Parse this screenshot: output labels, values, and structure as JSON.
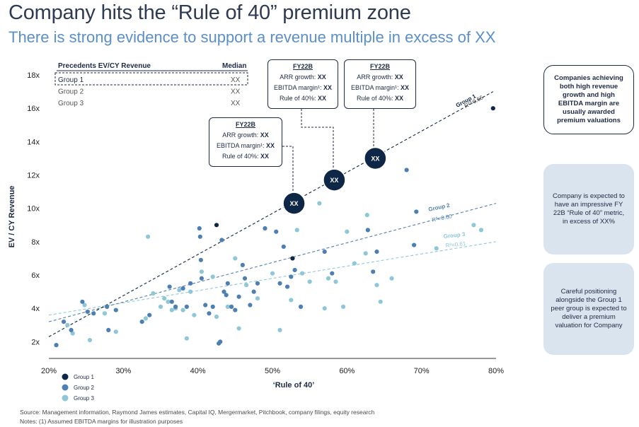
{
  "header": {
    "title": "Company hits the “Rule of 40” premium zone",
    "subtitle": "There is strong evidence to support a revenue multiple in excess of XX"
  },
  "table": {
    "col1": "Precedents EV/CY Revenue",
    "col2": "Median",
    "rows": [
      {
        "label": "Group 1",
        "value": "XX"
      },
      {
        "label": "Group 2",
        "value": "XX"
      },
      {
        "label": "Group 3",
        "value": "XX"
      }
    ]
  },
  "callouts": [
    {
      "title": "FY22B",
      "l1": "ARR growth:",
      "v1": "XX",
      "l2": "EBITDA margin¹:",
      "v2": "XX",
      "l3": "Rule of 40%:",
      "v3": "XX",
      "marker": "XX"
    },
    {
      "title": "FY22B",
      "l1": "ARR growth:",
      "v1": "XX",
      "l2": "EBITDA margin¹:",
      "v2": "XX",
      "l3": "Rule of 40%:",
      "v3": "XX",
      "marker": "XX"
    },
    {
      "title": "FY22B",
      "l1": "ARR growth:",
      "v1": "XX",
      "l2": "EBITDA margin¹:",
      "v2": "XX",
      "l3": "Rule of 40%:",
      "v3": "XX",
      "marker": "XX"
    }
  ],
  "side_boxes": [
    "Companies achieving both high revenue growth and high EBITDA margin are usually awarded premium valuations",
    "Company is expected to have an impressive FY 22B “Rule of 40” metric, in excess of XX%",
    "Careful positioning alongside the Group 1 peer group is expected to deliver a premium valuation for Company"
  ],
  "footer": {
    "source": "Source: Management information, Raymond James estimates, Capital IQ, Mergermarket, Pitchbook, company filings, equity research",
    "notes": "Notes: (1) Assumed EBITDA margins for illustration purposes"
  },
  "colors": {
    "group1": "#0f2747",
    "group2": "#4e7fb2",
    "group3": "#8ec7d6",
    "highlight": "#0f2747"
  },
  "chart_data": {
    "type": "scatter",
    "xlabel": "‘Rule of 40’",
    "ylabel": "EV / CY Revenue",
    "xlim": [
      20,
      80
    ],
    "ylim": [
      1,
      18
    ],
    "x_ticks": [
      20,
      30,
      40,
      50,
      60,
      70,
      80
    ],
    "x_tick_labels": [
      "20%",
      "30%",
      "40%",
      "50%",
      "60%",
      "70%",
      "80%"
    ],
    "y_ticks": [
      2,
      4,
      6,
      8,
      10,
      12,
      14,
      16,
      18
    ],
    "y_tick_labels": [
      "2x",
      "4x",
      "6x",
      "8x",
      "10x",
      "12x",
      "14x",
      "16x",
      "18x"
    ],
    "legend_position": "bottom-left",
    "series": [
      {
        "name": "Group 1",
        "color": "#0f2747",
        "points": [
          [
            42.5,
            9.0
          ],
          [
            52.7,
            7.0
          ],
          [
            79.6,
            16.0
          ]
        ],
        "trend": {
          "label": "Group 1",
          "r2": "R²=0.66",
          "x": [
            20,
            79.6
          ],
          "y": [
            2.3,
            17.0
          ]
        }
      },
      {
        "name": "Group 2",
        "color": "#4e7fb2",
        "points": [
          [
            21.0,
            1.8
          ],
          [
            22.0,
            3.2
          ],
          [
            23.0,
            2.7
          ],
          [
            24.5,
            4.4
          ],
          [
            25.2,
            3.8
          ],
          [
            26.0,
            3.7
          ],
          [
            27.8,
            4.1
          ],
          [
            28.0,
            2.7
          ],
          [
            29.0,
            3.9
          ],
          [
            32.5,
            3.2
          ],
          [
            33.5,
            3.6
          ],
          [
            36.2,
            5.3
          ],
          [
            36.5,
            4.4
          ],
          [
            37.0,
            4.1
          ],
          [
            38.0,
            5.2
          ],
          [
            38.5,
            4.1
          ],
          [
            39.0,
            5.5
          ],
          [
            40.2,
            8.8
          ],
          [
            40.3,
            8.3
          ],
          [
            40.4,
            6.9
          ],
          [
            40.5,
            5.8
          ],
          [
            41.0,
            4.2
          ],
          [
            41.5,
            3.7
          ],
          [
            42.0,
            4.1
          ],
          [
            42.8,
            1.9
          ],
          [
            43.0,
            2.0
          ],
          [
            43.2,
            8.1
          ],
          [
            43.5,
            5.0
          ],
          [
            43.8,
            4.8
          ],
          [
            44.0,
            5.5
          ],
          [
            44.5,
            4.1
          ],
          [
            45.0,
            3.9
          ],
          [
            45.5,
            4.7
          ],
          [
            46.0,
            6.6
          ],
          [
            46.3,
            5.8
          ],
          [
            47.0,
            4.2
          ],
          [
            47.5,
            5.0
          ],
          [
            48.0,
            5.5
          ],
          [
            49.0,
            8.8
          ],
          [
            50.5,
            8.6
          ],
          [
            51.0,
            5.5
          ],
          [
            51.5,
            7.7
          ],
          [
            52.0,
            5.3
          ],
          [
            52.5,
            5.9
          ],
          [
            53.0,
            6.3
          ],
          [
            53.8,
            4.1
          ],
          [
            57.0,
            7.4
          ],
          [
            58.0,
            6.1
          ],
          [
            62.8,
            8.7
          ],
          [
            63.5,
            6.2
          ],
          [
            64.0,
            7.4
          ],
          [
            68.0,
            12.3
          ],
          [
            69.0,
            7.8
          ],
          [
            69.3,
            9.8
          ]
        ],
        "trend": {
          "label": "Group 2",
          "r2": "R²=0.60",
          "x": [
            20,
            80
          ],
          "y": [
            3.2,
            10.3
          ]
        }
      },
      {
        "name": "Group 3",
        "color": "#8ec7d6",
        "points": [
          [
            22.5,
            3.0
          ],
          [
            23.2,
            2.5
          ],
          [
            24.8,
            4.2
          ],
          [
            25.5,
            2.1
          ],
          [
            27.5,
            3.7
          ],
          [
            29.0,
            2.6
          ],
          [
            33.0,
            3.4
          ],
          [
            33.3,
            8.3
          ],
          [
            34.0,
            4.9
          ],
          [
            35.0,
            4.1
          ],
          [
            35.5,
            4.6
          ],
          [
            36.0,
            4.4
          ],
          [
            36.5,
            3.9
          ],
          [
            37.0,
            4.0
          ],
          [
            37.5,
            5.1
          ],
          [
            38.0,
            3.9
          ],
          [
            38.5,
            2.2
          ],
          [
            39.0,
            5.0
          ],
          [
            39.5,
            3.6
          ],
          [
            40.5,
            6.2
          ],
          [
            42.0,
            5.9
          ],
          [
            42.5,
            3.5
          ],
          [
            44.0,
            4.1
          ],
          [
            45.0,
            7.0
          ],
          [
            45.5,
            2.8
          ],
          [
            46.5,
            5.4
          ],
          [
            48.0,
            4.6
          ],
          [
            50.0,
            6.1
          ],
          [
            51.0,
            2.7
          ],
          [
            52.5,
            4.5
          ],
          [
            53.3,
            8.7
          ],
          [
            54.0,
            6.1
          ],
          [
            55.0,
            5.6
          ],
          [
            56.3,
            10.3
          ],
          [
            57.0,
            4.0
          ],
          [
            57.5,
            5.8
          ],
          [
            58.5,
            5.6
          ],
          [
            59.5,
            4.1
          ],
          [
            60.0,
            8.6
          ],
          [
            61.0,
            6.7
          ],
          [
            62.5,
            7.3
          ],
          [
            62.7,
            9.6
          ],
          [
            64.0,
            5.4
          ],
          [
            64.5,
            4.4
          ],
          [
            66.0,
            5.8
          ],
          [
            72.0,
            7.6
          ],
          [
            77.0,
            9.0
          ],
          [
            78.0,
            8.7
          ]
        ],
        "trend": {
          "label": "Group 3",
          "r2": "R²=0.61",
          "x": [
            20,
            80
          ],
          "y": [
            3.6,
            8.0
          ]
        }
      }
    ],
    "highlights": [
      {
        "x": 52.9,
        "y": 10.3,
        "label": "XX"
      },
      {
        "x": 58.3,
        "y": 11.7,
        "label": "XX"
      },
      {
        "x": 63.8,
        "y": 13.0,
        "label": "XX"
      }
    ]
  }
}
